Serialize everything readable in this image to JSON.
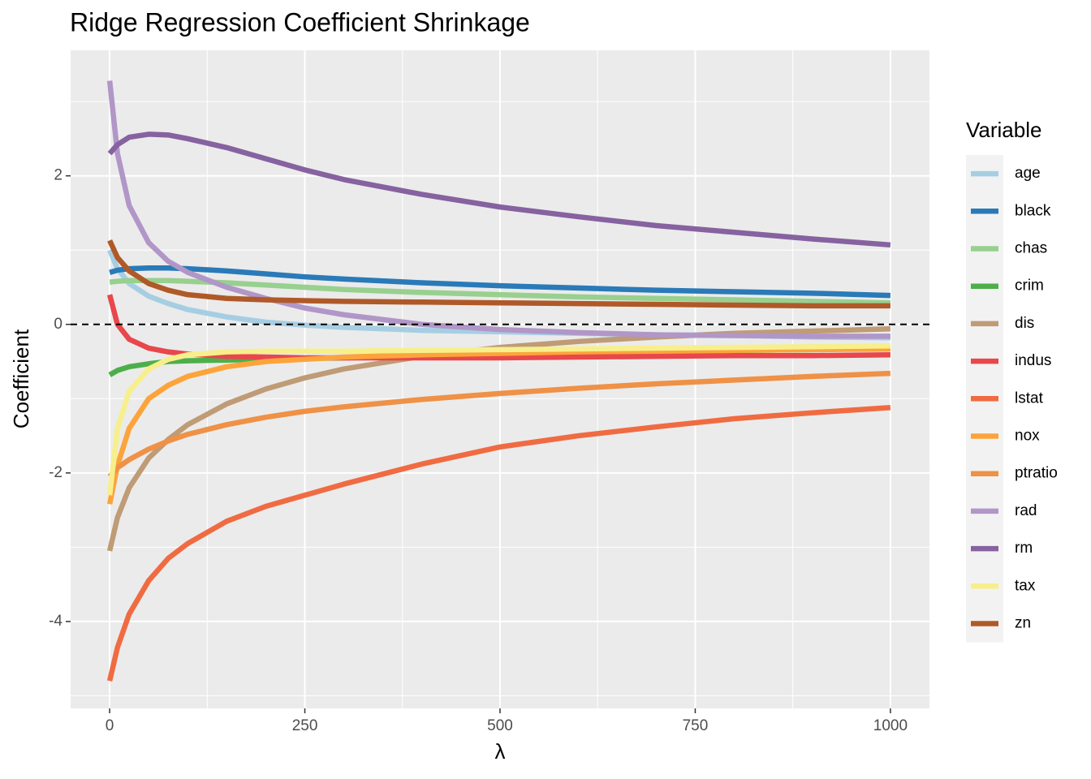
{
  "chart_data": {
    "type": "line",
    "title": "Ridge Regression Coefficient Shrinkage",
    "x_label": "λ",
    "y_label": "Coefficient",
    "legend_title": "Variable",
    "legend_position": "right",
    "grid": true,
    "hline": 0,
    "x": [
      0,
      10,
      25,
      50,
      75,
      100,
      150,
      200,
      250,
      300,
      400,
      500,
      600,
      700,
      800,
      900,
      1000
    ],
    "xlim": [
      -50,
      1050
    ],
    "xticks": [
      0,
      250,
      500,
      750,
      1000
    ],
    "ylim": [
      -5.17,
      3.69
    ],
    "yticks": [
      -4,
      -2,
      0,
      2
    ],
    "series": [
      {
        "name": "age",
        "color": "#a6cee3",
        "values": [
          1.0,
          0.75,
          0.55,
          0.38,
          0.28,
          0.2,
          0.1,
          0.03,
          -0.01,
          -0.04,
          -0.08,
          -0.1,
          -0.12,
          -0.14,
          -0.15,
          -0.17,
          -0.18
        ]
      },
      {
        "name": "black",
        "color": "#2a7ab8",
        "values": [
          0.7,
          0.73,
          0.75,
          0.76,
          0.76,
          0.75,
          0.72,
          0.68,
          0.64,
          0.61,
          0.56,
          0.52,
          0.49,
          0.46,
          0.44,
          0.42,
          0.39
        ]
      },
      {
        "name": "chas",
        "color": "#98d08f",
        "values": [
          0.57,
          0.58,
          0.59,
          0.59,
          0.59,
          0.58,
          0.56,
          0.53,
          0.5,
          0.47,
          0.43,
          0.4,
          0.37,
          0.35,
          0.33,
          0.31,
          0.29
        ]
      },
      {
        "name": "crim",
        "color": "#4daf4a",
        "values": [
          -0.68,
          -0.62,
          -0.57,
          -0.53,
          -0.5,
          -0.49,
          -0.48,
          -0.47,
          -0.46,
          -0.45,
          -0.43,
          -0.41,
          -0.39,
          -0.37,
          -0.35,
          -0.34,
          -0.32
        ]
      },
      {
        "name": "dis",
        "color": "#bf9b76",
        "values": [
          -3.05,
          -2.6,
          -2.2,
          -1.8,
          -1.55,
          -1.35,
          -1.07,
          -0.87,
          -0.72,
          -0.6,
          -0.43,
          -0.31,
          -0.23,
          -0.17,
          -0.12,
          -0.09,
          -0.06
        ]
      },
      {
        "name": "indus",
        "color": "#e8474b",
        "values": [
          0.4,
          0.0,
          -0.2,
          -0.32,
          -0.37,
          -0.4,
          -0.43,
          -0.44,
          -0.45,
          -0.45,
          -0.45,
          -0.45,
          -0.44,
          -0.43,
          -0.42,
          -0.42,
          -0.41
        ]
      },
      {
        "name": "lstat",
        "color": "#f06b42",
        "values": [
          -4.8,
          -4.35,
          -3.9,
          -3.45,
          -3.15,
          -2.95,
          -2.65,
          -2.45,
          -2.3,
          -2.15,
          -1.88,
          -1.65,
          -1.5,
          -1.38,
          -1.27,
          -1.19,
          -1.12
        ]
      },
      {
        "name": "nox",
        "color": "#fca43b",
        "values": [
          -2.42,
          -1.9,
          -1.4,
          -1.0,
          -0.82,
          -0.7,
          -0.57,
          -0.5,
          -0.47,
          -0.44,
          -0.41,
          -0.39,
          -0.37,
          -0.36,
          -0.35,
          -0.34,
          -0.33
        ]
      },
      {
        "name": "ptratio",
        "color": "#ef9146",
        "values": [
          -2.05,
          -1.93,
          -1.82,
          -1.68,
          -1.57,
          -1.48,
          -1.35,
          -1.25,
          -1.17,
          -1.11,
          -1.01,
          -0.93,
          -0.86,
          -0.8,
          -0.75,
          -0.7,
          -0.66
        ]
      },
      {
        "name": "rad",
        "color": "#b196c8",
        "values": [
          3.28,
          2.3,
          1.6,
          1.1,
          0.85,
          0.7,
          0.5,
          0.35,
          0.22,
          0.13,
          0.0,
          -0.07,
          -0.11,
          -0.14,
          -0.15,
          -0.16,
          -0.16
        ]
      },
      {
        "name": "rm",
        "color": "#8662a0",
        "values": [
          2.3,
          2.42,
          2.52,
          2.56,
          2.55,
          2.5,
          2.38,
          2.23,
          2.08,
          1.95,
          1.75,
          1.58,
          1.45,
          1.33,
          1.24,
          1.15,
          1.07
        ]
      },
      {
        "name": "tax",
        "color": "#f7ef8c",
        "values": [
          -2.3,
          -1.4,
          -0.9,
          -0.6,
          -0.47,
          -0.41,
          -0.37,
          -0.36,
          -0.36,
          -0.36,
          -0.35,
          -0.34,
          -0.33,
          -0.32,
          -0.31,
          -0.3,
          -0.29
        ]
      },
      {
        "name": "zn",
        "color": "#b05928",
        "values": [
          1.13,
          0.9,
          0.72,
          0.55,
          0.46,
          0.4,
          0.35,
          0.33,
          0.32,
          0.31,
          0.3,
          0.29,
          0.28,
          0.27,
          0.26,
          0.25,
          0.25
        ]
      }
    ]
  }
}
